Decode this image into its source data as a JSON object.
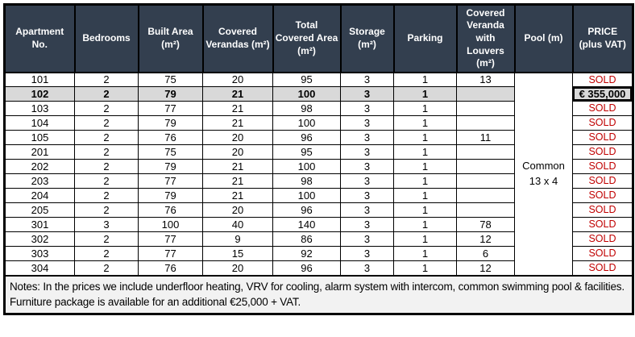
{
  "table": {
    "columns": [
      {
        "key": "apartment",
        "label": "Apartment No."
      },
      {
        "key": "bedrooms",
        "label": "Bedrooms"
      },
      {
        "key": "built_area",
        "label": "Built Area (m²)"
      },
      {
        "key": "covered_verandas",
        "label": "Covered Verandas (m²)"
      },
      {
        "key": "total_covered_area",
        "label": "Total Covered Area (m²)"
      },
      {
        "key": "storage",
        "label": "Storage (m²)"
      },
      {
        "key": "parking",
        "label": "Parking"
      },
      {
        "key": "louvers",
        "label": "Covered Veranda with Louvers (m²)"
      },
      {
        "key": "pool",
        "label": "Pool (m)"
      },
      {
        "key": "price",
        "label": "PRICE (plus VAT)"
      }
    ],
    "pool_cell": {
      "line1": "Common",
      "line2": "13 x 4"
    },
    "rows": [
      {
        "apartment": "101",
        "bedrooms": "2",
        "built_area": "75",
        "covered_verandas": "20",
        "total_covered_area": "95",
        "storage": "3",
        "parking": "1",
        "louvers": "13",
        "price": "SOLD",
        "sold": true,
        "highlight": false
      },
      {
        "apartment": "102",
        "bedrooms": "2",
        "built_area": "79",
        "covered_verandas": "21",
        "total_covered_area": "100",
        "storage": "3",
        "parking": "1",
        "louvers": "",
        "price": "€ 355,000",
        "sold": false,
        "highlight": true
      },
      {
        "apartment": "103",
        "bedrooms": "2",
        "built_area": "77",
        "covered_verandas": "21",
        "total_covered_area": "98",
        "storage": "3",
        "parking": "1",
        "louvers": "",
        "price": "SOLD",
        "sold": true,
        "highlight": false
      },
      {
        "apartment": "104",
        "bedrooms": "2",
        "built_area": "79",
        "covered_verandas": "21",
        "total_covered_area": "100",
        "storage": "3",
        "parking": "1",
        "louvers": "",
        "price": "SOLD",
        "sold": true,
        "highlight": false
      },
      {
        "apartment": "105",
        "bedrooms": "2",
        "built_area": "76",
        "covered_verandas": "20",
        "total_covered_area": "96",
        "storage": "3",
        "parking": "1",
        "louvers": "11",
        "price": "SOLD",
        "sold": true,
        "highlight": false
      },
      {
        "apartment": "201",
        "bedrooms": "2",
        "built_area": "75",
        "covered_verandas": "20",
        "total_covered_area": "95",
        "storage": "3",
        "parking": "1",
        "louvers": "",
        "price": "SOLD",
        "sold": true,
        "highlight": false
      },
      {
        "apartment": "202",
        "bedrooms": "2",
        "built_area": "79",
        "covered_verandas": "21",
        "total_covered_area": "100",
        "storage": "3",
        "parking": "1",
        "louvers": "",
        "price": "SOLD",
        "sold": true,
        "highlight": false
      },
      {
        "apartment": "203",
        "bedrooms": "2",
        "built_area": "77",
        "covered_verandas": "21",
        "total_covered_area": "98",
        "storage": "3",
        "parking": "1",
        "louvers": "",
        "price": "SOLD",
        "sold": true,
        "highlight": false
      },
      {
        "apartment": "204",
        "bedrooms": "2",
        "built_area": "79",
        "covered_verandas": "21",
        "total_covered_area": "100",
        "storage": "3",
        "parking": "1",
        "louvers": "",
        "price": "SOLD",
        "sold": true,
        "highlight": false
      },
      {
        "apartment": "205",
        "bedrooms": "2",
        "built_area": "76",
        "covered_verandas": "20",
        "total_covered_area": "96",
        "storage": "3",
        "parking": "1",
        "louvers": "",
        "price": "SOLD",
        "sold": true,
        "highlight": false
      },
      {
        "apartment": "301",
        "bedrooms": "3",
        "built_area": "100",
        "covered_verandas": "40",
        "total_covered_area": "140",
        "storage": "3",
        "parking": "1",
        "louvers": "78",
        "price": "SOLD",
        "sold": true,
        "highlight": false
      },
      {
        "apartment": "302",
        "bedrooms": "2",
        "built_area": "77",
        "covered_verandas": "9",
        "total_covered_area": "86",
        "storage": "3",
        "parking": "1",
        "louvers": "12",
        "price": "SOLD",
        "sold": true,
        "highlight": false
      },
      {
        "apartment": "303",
        "bedrooms": "2",
        "built_area": "77",
        "covered_verandas": "15",
        "total_covered_area": "92",
        "storage": "3",
        "parking": "1",
        "louvers": "6",
        "price": "SOLD",
        "sold": true,
        "highlight": false
      },
      {
        "apartment": "304",
        "bedrooms": "2",
        "built_area": "76",
        "covered_verandas": "20",
        "total_covered_area": "96",
        "storage": "3",
        "parking": "1",
        "louvers": "12",
        "price": "SOLD",
        "sold": true,
        "highlight": false
      }
    ]
  },
  "notes": "Notes: In the prices we include underfloor heating, VRV for cooling, alarm system with intercom, common swimming pool & facilities. Furniture package is available for an additional €25,000 + VAT.",
  "colors": {
    "header_bg": "#333F4F",
    "header_text": "#FFFFFF",
    "highlight_bg": "#D9D9D9",
    "sold_text": "#C00000",
    "notes_bg": "#F2F2F2",
    "border": "#000000"
  }
}
